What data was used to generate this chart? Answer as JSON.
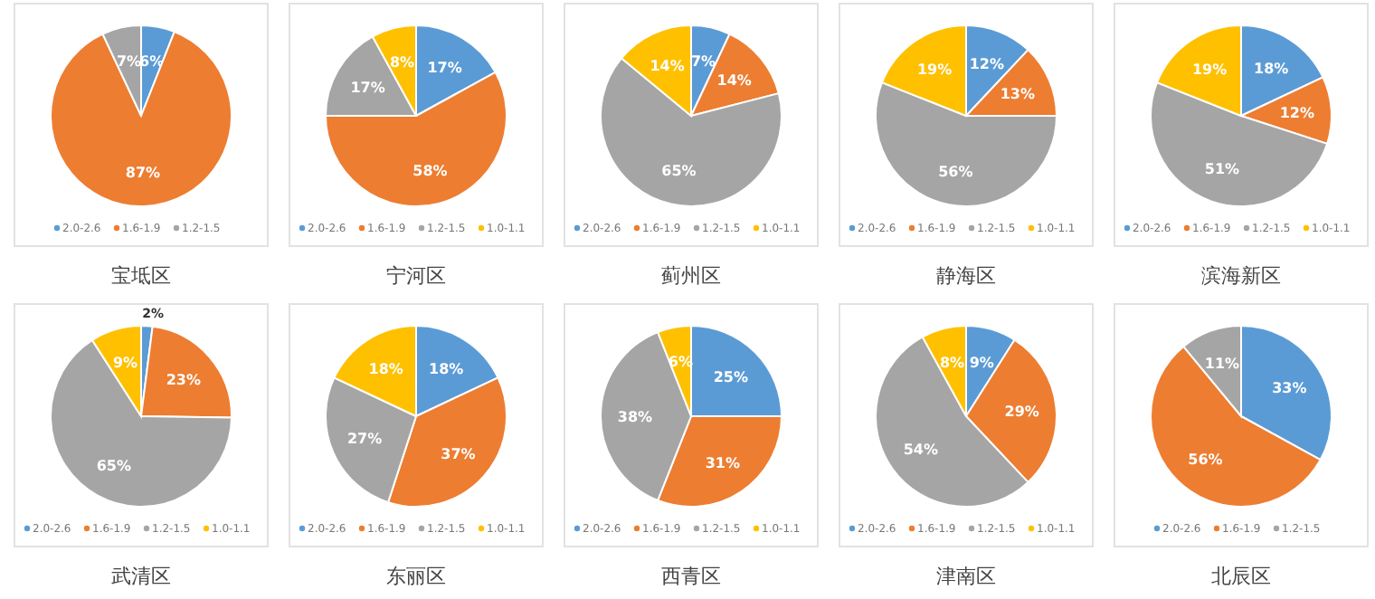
{
  "chart_data": [
    {
      "type": "pie",
      "title": "宝坻区",
      "categories": [
        "2.0-2.6",
        "1.6-1.9",
        "1.2-1.5"
      ],
      "values": [
        6,
        87,
        7
      ],
      "value_labels": [
        "6%",
        "87%",
        "7%"
      ],
      "colors": [
        "#5b9bd5",
        "#ed7d31",
        "#a5a5a5"
      ],
      "legend": "bottom"
    },
    {
      "type": "pie",
      "title": "宁河区",
      "categories": [
        "2.0-2.6",
        "1.6-1.9",
        "1.2-1.5",
        "1.0-1.1"
      ],
      "values": [
        17,
        58,
        17,
        8
      ],
      "value_labels": [
        "17%",
        "58%",
        "17%",
        "8%"
      ],
      "colors": [
        "#5b9bd5",
        "#ed7d31",
        "#a5a5a5",
        "#ffc000"
      ],
      "legend": "bottom"
    },
    {
      "type": "pie",
      "title": "蓟州区",
      "categories": [
        "2.0-2.6",
        "1.6-1.9",
        "1.2-1.5",
        "1.0-1.1"
      ],
      "values": [
        7,
        14,
        65,
        14
      ],
      "value_labels": [
        "7%",
        "14%",
        "65%",
        "14%"
      ],
      "colors": [
        "#5b9bd5",
        "#ed7d31",
        "#a5a5a5",
        "#ffc000"
      ],
      "legend": "bottom"
    },
    {
      "type": "pie",
      "title": "静海区",
      "categories": [
        "2.0-2.6",
        "1.6-1.9",
        "1.2-1.5",
        "1.0-1.1"
      ],
      "values": [
        12,
        13,
        56,
        19
      ],
      "value_labels": [
        "12%",
        "13%",
        "56%",
        "19%"
      ],
      "colors": [
        "#5b9bd5",
        "#ed7d31",
        "#a5a5a5",
        "#ffc000"
      ],
      "legend": "bottom"
    },
    {
      "type": "pie",
      "title": "滨海新区",
      "categories": [
        "2.0-2.6",
        "1.6-1.9",
        "1.2-1.5",
        "1.0-1.1"
      ],
      "values": [
        18,
        12,
        51,
        19
      ],
      "value_labels": [
        "18%",
        "12%",
        "51%",
        "19%"
      ],
      "colors": [
        "#5b9bd5",
        "#ed7d31",
        "#a5a5a5",
        "#ffc000"
      ],
      "legend": "bottom"
    },
    {
      "type": "pie",
      "title": "武清区",
      "categories": [
        "2.0-2.6",
        "1.6-1.9",
        "1.2-1.5",
        "1.0-1.1"
      ],
      "values": [
        2,
        23,
        65,
        9
      ],
      "value_labels": [
        "2%",
        "23%",
        "65%",
        "9%"
      ],
      "colors": [
        "#5b9bd5",
        "#ed7d31",
        "#a5a5a5",
        "#ffc000"
      ],
      "legend": "bottom"
    },
    {
      "type": "pie",
      "title": "东丽区",
      "categories": [
        "2.0-2.6",
        "1.6-1.9",
        "1.2-1.5",
        "1.0-1.1"
      ],
      "values": [
        18,
        37,
        27,
        18
      ],
      "value_labels": [
        "18%",
        "37%",
        "27%",
        "18%"
      ],
      "colors": [
        "#5b9bd5",
        "#ed7d31",
        "#a5a5a5",
        "#ffc000"
      ],
      "legend": "bottom"
    },
    {
      "type": "pie",
      "title": "西青区",
      "categories": [
        "2.0-2.6",
        "1.6-1.9",
        "1.2-1.5",
        "1.0-1.1"
      ],
      "values": [
        25,
        31,
        38,
        6
      ],
      "value_labels": [
        "25%",
        "31%",
        "38%",
        "6%"
      ],
      "colors": [
        "#5b9bd5",
        "#ed7d31",
        "#a5a5a5",
        "#ffc000"
      ],
      "legend": "bottom"
    },
    {
      "type": "pie",
      "title": "津南区",
      "categories": [
        "2.0-2.6",
        "1.6-1.9",
        "1.2-1.5",
        "1.0-1.1"
      ],
      "values": [
        9,
        29,
        54,
        8
      ],
      "value_labels": [
        "9%",
        "29%",
        "54%",
        "8%"
      ],
      "colors": [
        "#5b9bd5",
        "#ed7d31",
        "#a5a5a5",
        "#ffc000"
      ],
      "legend": "bottom"
    },
    {
      "type": "pie",
      "title": "北辰区",
      "categories": [
        "2.0-2.6",
        "1.6-1.9",
        "1.2-1.5"
      ],
      "values": [
        33,
        56,
        11
      ],
      "value_labels": [
        "33%",
        "56%",
        "11%"
      ],
      "colors": [
        "#5b9bd5",
        "#ed7d31",
        "#a5a5a5"
      ],
      "legend": "bottom"
    }
  ]
}
